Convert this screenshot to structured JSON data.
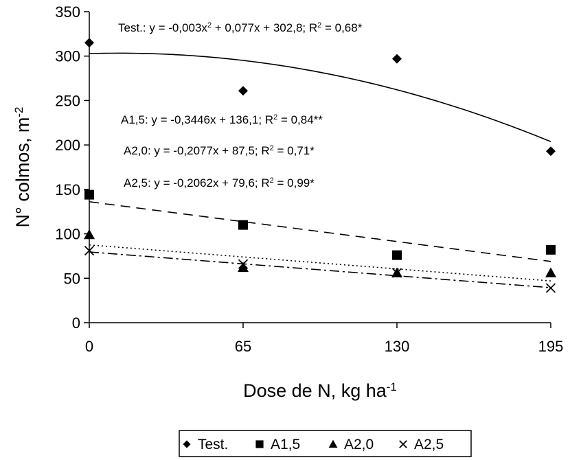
{
  "chart_data": {
    "type": "scatter",
    "xlabel": {
      "main": "Dose de N, kg ha",
      "sup": "-1"
    },
    "ylabel": {
      "main": "N° colmos, m",
      "sup": "-2"
    },
    "x_ticks": [
      "0",
      "65",
      "130",
      "195"
    ],
    "y_ticks": [
      "0",
      "50",
      "100",
      "150",
      "200",
      "250",
      "300",
      "350"
    ],
    "xlim": [
      0,
      195
    ],
    "ylim": [
      0,
      350
    ],
    "x": [
      0,
      65,
      130,
      195
    ],
    "series": [
      {
        "name": "Test.",
        "marker": "diamond",
        "values": [
          315,
          261,
          297,
          193
        ],
        "trend": {
          "kind": "quadratic",
          "a": -0.003,
          "b": 0.077,
          "c": 302.8,
          "dash": ""
        }
      },
      {
        "name": "A1,5",
        "marker": "square",
        "values": [
          144,
          110,
          76,
          82
        ],
        "trend": {
          "kind": "linear",
          "m": -0.3446,
          "b": 136.1,
          "dash": "14 9"
        }
      },
      {
        "name": "A2,0",
        "marker": "triangle",
        "values": [
          99,
          62,
          56,
          56
        ],
        "trend": {
          "kind": "linear",
          "m": -0.2077,
          "b": 87.5,
          "dash": "2 4"
        }
      },
      {
        "name": "A2,5",
        "marker": "x",
        "values": [
          81,
          66,
          56,
          39
        ],
        "trend": {
          "kind": "linear",
          "m": -0.2062,
          "b": 79.6,
          "dash": "14 5 3 5"
        }
      }
    ],
    "annotations": [
      {
        "id": "test",
        "parts": [
          [
            "Test.: y = -0,003x",
            ""
          ],
          [
            "2",
            "sup"
          ],
          [
            " + 0,077x + 302,8; R",
            ""
          ],
          [
            "2",
            "sup"
          ],
          [
            " = 0,68*",
            ""
          ]
        ]
      },
      {
        "id": "a15",
        "parts": [
          [
            "A1,5: y = -0,3446x + 136,1; R",
            ""
          ],
          [
            "2",
            "sup"
          ],
          [
            " = 0,84**",
            ""
          ]
        ]
      },
      {
        "id": "a20",
        "parts": [
          [
            "A2,0: y = -0,2077x + 87,5; R",
            ""
          ],
          [
            "2",
            "sup"
          ],
          [
            " = 0,71*",
            ""
          ]
        ]
      },
      {
        "id": "a25",
        "parts": [
          [
            "A2,5: y = -0,2062x + 79,6; R",
            ""
          ],
          [
            "2",
            "sup"
          ],
          [
            " = 0,99*",
            ""
          ]
        ]
      }
    ],
    "legend": {
      "position": "bottom",
      "items": [
        "Test.",
        "A1,5",
        "A2,0",
        "A2,5"
      ]
    },
    "grid": false,
    "colors": {
      "ink": "#000000",
      "background": "#ffffff"
    }
  }
}
